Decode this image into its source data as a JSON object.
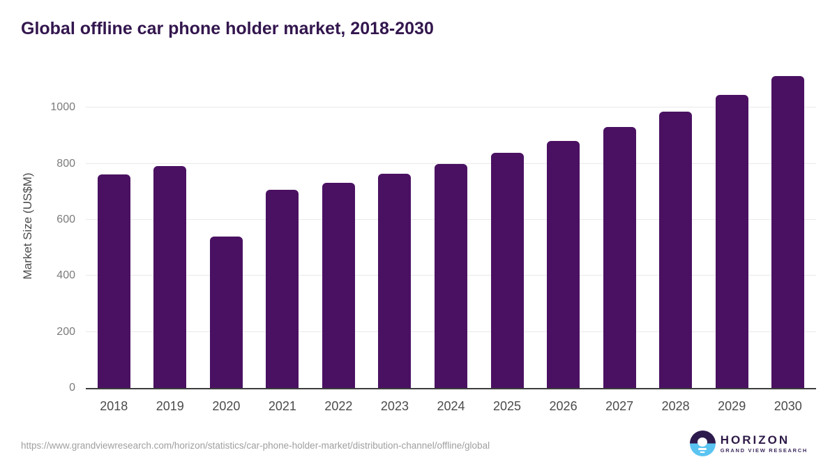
{
  "title": "Global offline car phone holder market, 2018-2030",
  "footer": {
    "source_url": "https://www.grandviewresearch.com/horizon/statistics/car-phone-holder-market/distribution-channel/offline/global",
    "logo": {
      "name": "HORIZON",
      "tagline": "GRAND VIEW RESEARCH"
    }
  },
  "chart_data": {
    "type": "bar",
    "title": "Global offline car phone holder market, 2018-2030",
    "categories": [
      "2018",
      "2019",
      "2020",
      "2021",
      "2022",
      "2023",
      "2024",
      "2025",
      "2026",
      "2027",
      "2028",
      "2029",
      "2030"
    ],
    "values": [
      762,
      791,
      540,
      708,
      732,
      764,
      800,
      838,
      881,
      930,
      986,
      1046,
      1113
    ],
    "xlabel": "",
    "ylabel": "Market Size (US$M)",
    "yticks": [
      0,
      200,
      400,
      600,
      800,
      1000
    ],
    "ylim": [
      0,
      1160
    ],
    "grid": "horizontal",
    "legend": "none",
    "bar_color": "#4a1162"
  },
  "colors": {
    "accent_bar": "#4a1162",
    "title_text": "#33164e",
    "tick_text": "#7b7b7b",
    "axis_text": "#4b4b4b",
    "gridline": "#e9e9e9",
    "baseline": "#3d3d3d",
    "url_text": "#9f9f9f",
    "logo_purple": "#2e1b4d",
    "logo_blue": "#5ac4f1"
  }
}
